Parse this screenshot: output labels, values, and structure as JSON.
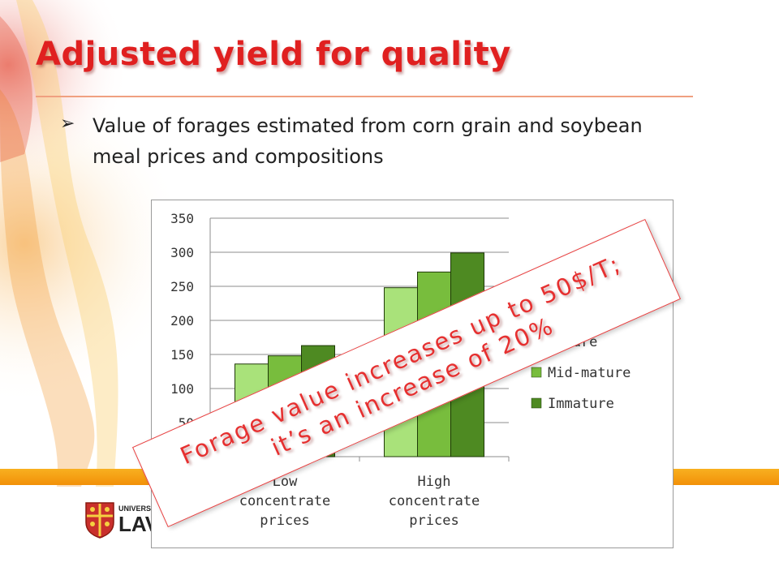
{
  "slide": {
    "title": "Adjusted yield for quality",
    "bullet_text": "Value of forages estimated from corn grain and soybean meal prices and compositions",
    "bullet_marker": "➢"
  },
  "logo": {
    "text_top": "UNIVERSITÉ",
    "text_bottom": "LAVAL"
  },
  "callout": {
    "line1": "Forage value increases up to 50$/T;",
    "line2": "it’s an increase of 20%"
  },
  "colors": {
    "title": "#e02020",
    "callout": "#e63030",
    "band": "#f5a010"
  },
  "chart_data": {
    "type": "bar",
    "categories": [
      "Low concentrate prices",
      "High concentrate prices"
    ],
    "series": [
      {
        "name": "Mature",
        "values": [
          136,
          248
        ],
        "color": "#a9e27a"
      },
      {
        "name": "Mid-mature",
        "values": [
          148,
          271
        ],
        "color": "#78bd3d"
      },
      {
        "name": "Immature",
        "values": [
          163,
          299
        ],
        "color": "#4e8a22"
      }
    ],
    "ylim": [
      0,
      350
    ],
    "yticks": [
      50,
      100,
      150,
      200,
      250,
      300,
      350
    ],
    "grid": true,
    "legend": "right",
    "xlabel": "",
    "ylabel": ""
  }
}
